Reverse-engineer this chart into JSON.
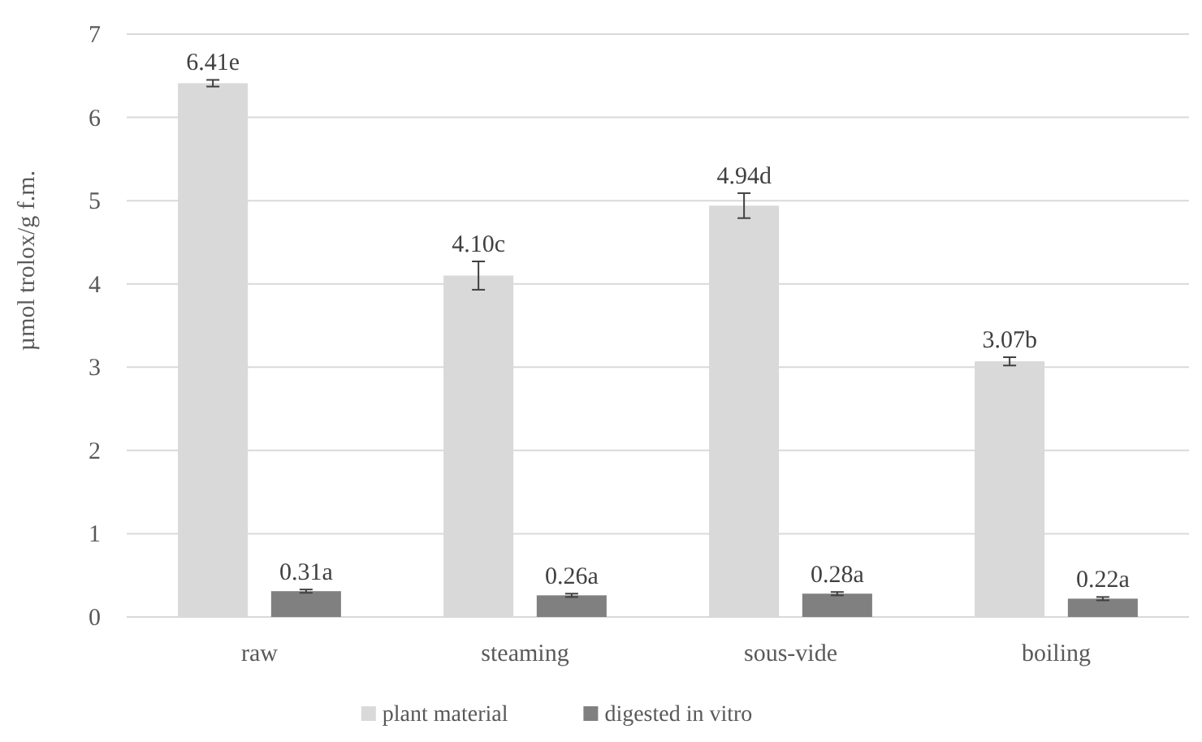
{
  "chart_data": {
    "type": "bar",
    "ylabel": "µmol trolox/g f.m.",
    "categories": [
      "raw",
      "steaming",
      "sous-vide",
      "boiling"
    ],
    "series": [
      {
        "name": "plant material",
        "color": "#d9d9d9",
        "values": [
          6.41,
          4.1,
          4.94,
          3.07
        ],
        "errors": [
          0.04,
          0.17,
          0.15,
          0.05
        ],
        "value_labels": [
          "6.41e",
          "4.10c",
          "4.94d",
          "3.07b"
        ]
      },
      {
        "name": "digested in vitro",
        "color": "#808080",
        "values": [
          0.31,
          0.26,
          0.28,
          0.22
        ],
        "errors": [
          0.02,
          0.02,
          0.02,
          0.02
        ],
        "value_labels": [
          "0.31a",
          "0.26a",
          "0.28a",
          "0.22a"
        ]
      }
    ],
    "ylim": [
      0,
      7
    ],
    "yticks": [
      0,
      1,
      2,
      3,
      4,
      5,
      6,
      7
    ],
    "grid": "y",
    "legend": "bottom"
  }
}
